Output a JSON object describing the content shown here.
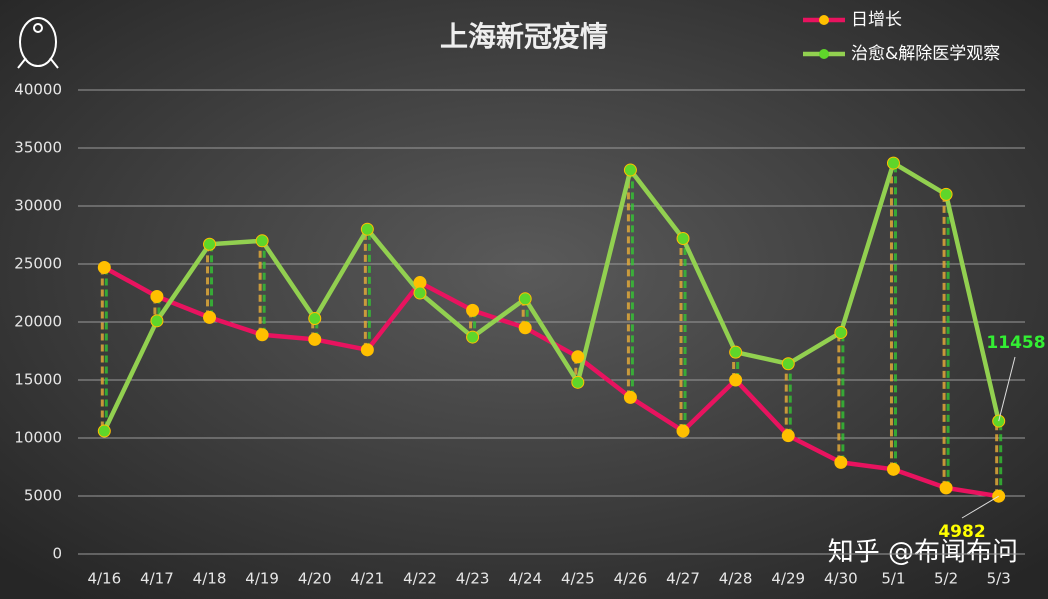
{
  "chart_data": {
    "type": "line",
    "title": "上海新冠疫情",
    "categories": [
      "4/16",
      "4/17",
      "4/18",
      "4/19",
      "4/20",
      "4/21",
      "4/22",
      "4/23",
      "4/24",
      "4/25",
      "4/26",
      "4/27",
      "4/28",
      "4/29",
      "4/30",
      "5/1",
      "5/2",
      "5/3"
    ],
    "series": [
      {
        "name": "日增长",
        "color": "#e8135f",
        "marker_color": "#ffc000",
        "values": [
          24700,
          22200,
          20400,
          18900,
          18500,
          17600,
          23400,
          21000,
          19500,
          17000,
          13500,
          10600,
          15000,
          10200,
          7900,
          7300,
          5700,
          4982
        ]
      },
      {
        "name": "治愈&解除医学观察",
        "color": "#92d050",
        "marker_color": "#5fd62a",
        "values": [
          10600,
          20100,
          26700,
          27000,
          20300,
          28000,
          22500,
          18700,
          22000,
          14800,
          33100,
          27200,
          17400,
          16400,
          19100,
          33700,
          31000,
          11458
        ]
      }
    ],
    "ylim": [
      0,
      40000
    ],
    "yticks": [
      0,
      5000,
      10000,
      15000,
      20000,
      25000,
      30000,
      35000,
      40000
    ],
    "grid": true,
    "legend": "top-right",
    "watermark": "知乎 @布闻布问"
  }
}
